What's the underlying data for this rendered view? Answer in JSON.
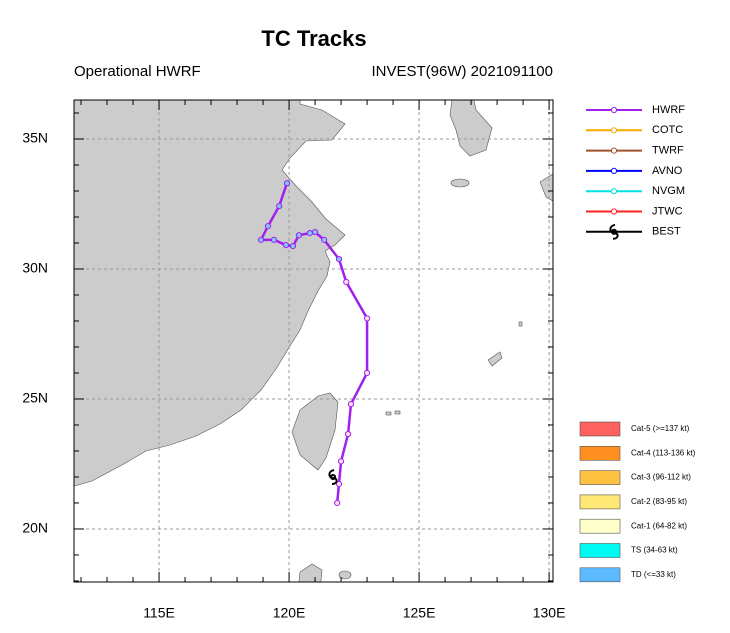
{
  "chart_data": {
    "type": "track_map",
    "title": "TC Tracks",
    "subtitle_left": "Operational HWRF",
    "subtitle_right": "INVEST(96W) 2021091100",
    "xlim": [
      111.73,
      130.15
    ],
    "ylim": [
      17.96,
      36.5
    ],
    "xticks": [
      {
        "value": 115,
        "label": "115E"
      },
      {
        "value": 120,
        "label": "120E"
      },
      {
        "value": 125,
        "label": "125E"
      },
      {
        "value": 130,
        "label": "130E"
      }
    ],
    "yticks": [
      {
        "value": 20,
        "label": "20N"
      },
      {
        "value": 25,
        "label": "25N"
      },
      {
        "value": 30,
        "label": "30N"
      },
      {
        "value": 35,
        "label": "35N"
      }
    ],
    "xminorticks": [
      112,
      113,
      114,
      116,
      117,
      118,
      119,
      121,
      122,
      123,
      124,
      126,
      127,
      128,
      129
    ],
    "yminorticks": [
      18,
      19,
      21,
      22,
      23,
      24,
      26,
      27,
      28,
      29,
      31,
      32,
      33,
      34,
      36
    ],
    "grid": true,
    "series": [
      {
        "name": "HWRF",
        "color": "#a020f0",
        "x": [
          121.85,
          121.92,
          122.0,
          122.27,
          122.38,
          123.0,
          123.0,
          122.2,
          121.92,
          121.35,
          121.0,
          120.8,
          120.38,
          120.15,
          119.88,
          119.42,
          118.92,
          119.19,
          119.62,
          119.92
        ],
        "values": [
          21.0,
          21.73,
          22.6,
          23.65,
          24.8,
          26.0,
          28.1,
          29.5,
          30.38,
          31.12,
          31.42,
          31.38,
          31.3,
          30.88,
          30.92,
          31.12,
          31.12,
          31.65,
          32.42,
          33.3
        ]
      },
      {
        "name": "COTC",
        "color": "#f5a800",
        "x": [],
        "values": []
      },
      {
        "name": "TWRF",
        "color": "#a0522d",
        "x": [],
        "values": []
      },
      {
        "name": "AVNO",
        "color": "#0000ff",
        "x": [],
        "values": []
      },
      {
        "name": "NVGM",
        "color": "#00e0e0",
        "x": [],
        "values": []
      },
      {
        "name": "JTWC",
        "color": "#ff2020",
        "x": [],
        "values": []
      },
      {
        "name": "BEST",
        "color": "#000000",
        "x": [
          121.69
        ],
        "values": [
          22.0
        ]
      }
    ],
    "intensity_legend": [
      {
        "label": "Cat-5 (>=137 kt)",
        "color": "#ff6060"
      },
      {
        "label": "Cat-4 (113-136 kt)",
        "color": "#ff8f20"
      },
      {
        "label": "Cat-3 (96-112 kt)",
        "color": "#ffc140"
      },
      {
        "label": "Cat-2 (83-95 kt)",
        "color": "#ffe775"
      },
      {
        "label": "Cat-1 (64-82 kt)",
        "color": "#ffffcc"
      },
      {
        "label": "TS (34-63 kt)",
        "color": "#00faf4"
      },
      {
        "label": "TD (<=33 kt)",
        "color": "#5ebaff"
      }
    ]
  }
}
